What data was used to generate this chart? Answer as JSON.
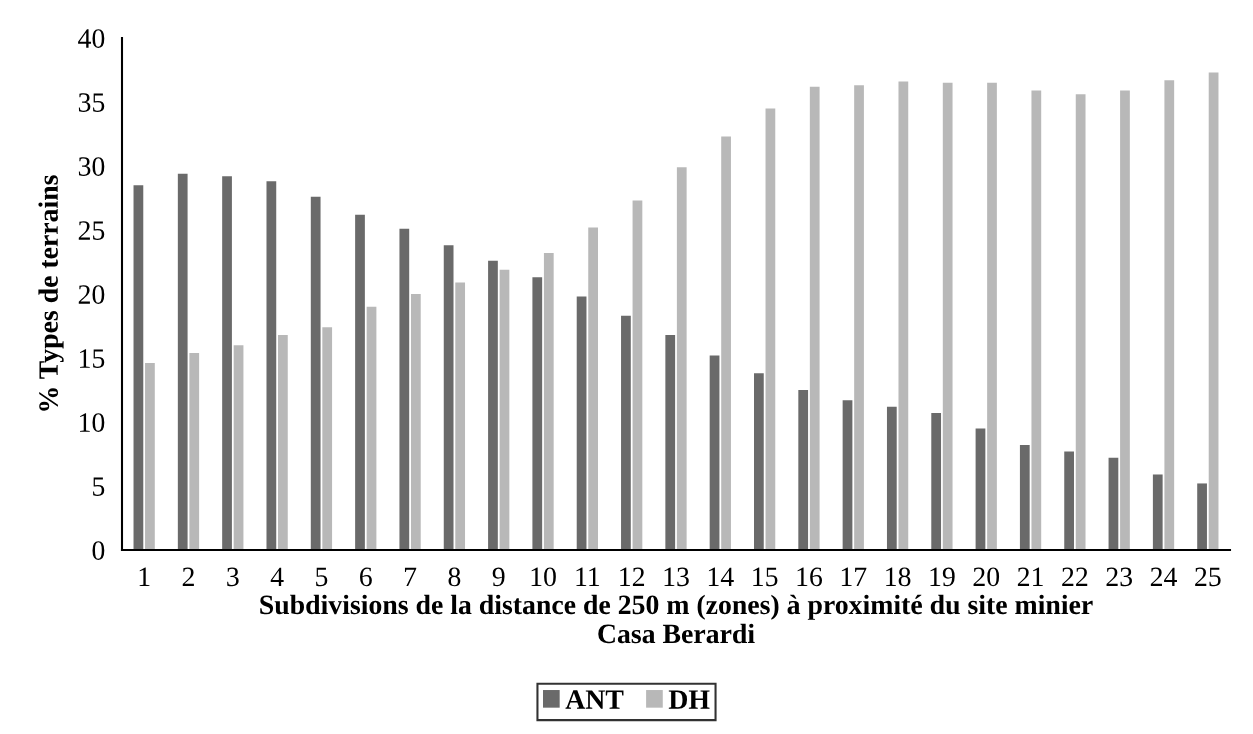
{
  "chart_data": {
    "type": "bar",
    "xlabel": "Subdivisions de la distance de 250 m (zones) à proximité du site minier\nCasa Berardi",
    "ylabel": "% Types de terrains",
    "categories": [
      "1",
      "2",
      "3",
      "4",
      "5",
      "6",
      "7",
      "8",
      "9",
      "10",
      "11",
      "12",
      "13",
      "14",
      "15",
      "16",
      "17",
      "18",
      "19",
      "20",
      "21",
      "22",
      "23",
      "24",
      "25"
    ],
    "series": [
      {
        "name": "ANT",
        "color": "#6a6a6a",
        "values": [
          28.5,
          29.4,
          29.2,
          28.8,
          27.6,
          26.2,
          25.1,
          23.8,
          22.6,
          21.3,
          19.8,
          18.3,
          16.8,
          15.2,
          13.8,
          12.5,
          11.7,
          11.2,
          10.7,
          9.5,
          8.2,
          7.7,
          7.2,
          5.9,
          5.2
        ]
      },
      {
        "name": "DH",
        "color": "#b8b8b8",
        "values": [
          14.6,
          15.4,
          16.0,
          16.8,
          17.4,
          19.0,
          20.0,
          20.9,
          21.9,
          23.2,
          25.2,
          27.3,
          29.9,
          32.3,
          34.5,
          36.2,
          36.3,
          36.6,
          36.5,
          36.5,
          35.9,
          35.6,
          35.9,
          36.7,
          37.3
        ]
      }
    ],
    "ylim": [
      0,
      40
    ],
    "yticks": [
      0,
      5,
      10,
      15,
      20,
      25,
      30,
      35,
      40
    ],
    "grid": false,
    "legend": "bottom"
  }
}
